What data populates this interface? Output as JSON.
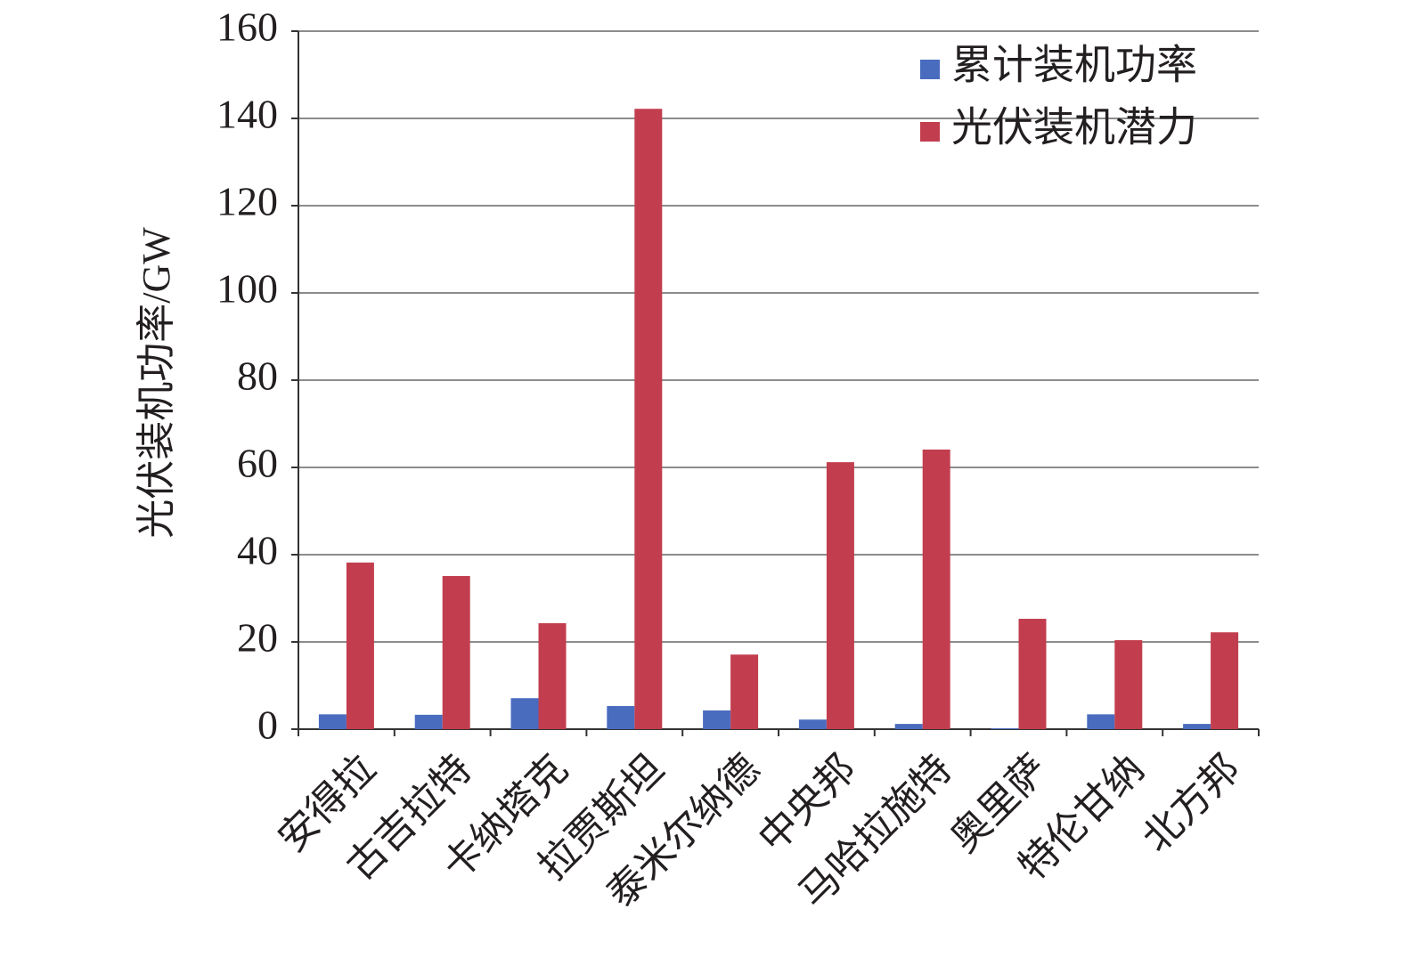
{
  "chart_data": {
    "type": "bar",
    "y_label": "光伏装机功率/GW",
    "categories": [
      "安得拉",
      "古吉拉特",
      "卡纳塔克",
      "拉贾斯坦",
      "泰米尔纳德",
      "中央邦",
      "马哈拉施特",
      "奥里萨",
      "特伦甘纳",
      "北方邦"
    ],
    "series": [
      {
        "name": "累计装机功率",
        "color": "#4a6cbf",
        "values": [
          3.4,
          3.3,
          7.1,
          5.3,
          4.3,
          2.2,
          1.2,
          0.2,
          3.4,
          1.2
        ]
      },
      {
        "name": "光伏装机潜力",
        "color": "#c23e4e",
        "values": [
          38.2,
          35.1,
          24.3,
          142.2,
          17.1,
          61.2,
          64.1,
          25.3,
          20.4,
          22.2
        ]
      }
    ],
    "ylim": [
      0,
      160
    ],
    "yticks": [
      0,
      20,
      40,
      60,
      80,
      100,
      120,
      140,
      160
    ],
    "grid": true,
    "legend": "top-right"
  }
}
